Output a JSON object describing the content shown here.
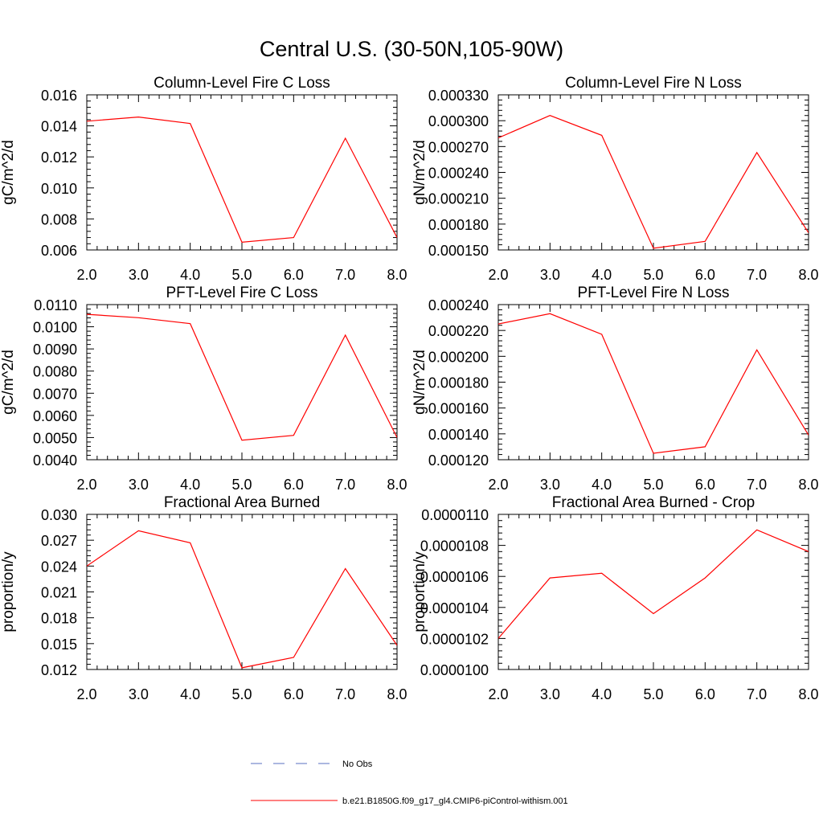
{
  "figure_title": "Central U.S. (30-50N,105-90W)",
  "legend": {
    "items": [
      {
        "label": "No Obs",
        "style": "dashed",
        "color": "#5a6fc0"
      },
      {
        "label": "b.e21.B1850G.f09_g17_gl4.CMIP6-piControl-withism.001",
        "style": "solid",
        "color": "#ff0000"
      }
    ]
  },
  "series_color": "#ff0000",
  "chart_data": [
    {
      "type": "line",
      "title": "Column-Level Fire C Loss",
      "ylabel": "gC/m^2/d",
      "xlabel": "",
      "x": [
        2,
        3,
        4,
        5,
        6,
        7,
        8
      ],
      "x_tick_labels": [
        "2.0",
        "3.0",
        "4.0",
        "5.0",
        "6.0",
        "7.0",
        "8.0"
      ],
      "xlim": [
        2,
        8
      ],
      "ylim": [
        0.006,
        0.016
      ],
      "y_tick_values": [
        0.006,
        0.008,
        0.01,
        0.012,
        0.014,
        0.016
      ],
      "y_tick_labels": [
        "0.006",
        "0.008",
        "0.010",
        "0.012",
        "0.014",
        "0.016"
      ],
      "series": [
        {
          "values": [
            0.0143,
            0.01457,
            0.01415,
            0.0065,
            0.0068,
            0.0132,
            0.0068
          ]
        }
      ]
    },
    {
      "type": "line",
      "title": "Column-Level Fire N Loss",
      "ylabel": "gN/m^2/d",
      "xlabel": "",
      "x": [
        2,
        3,
        4,
        5,
        6,
        7,
        8
      ],
      "x_tick_labels": [
        "2.0",
        "3.0",
        "4.0",
        "5.0",
        "6.0",
        "7.0",
        "8.0"
      ],
      "xlim": [
        2,
        8
      ],
      "ylim": [
        0.00015,
        0.00033
      ],
      "y_tick_values": [
        0.00015,
        0.00018,
        0.00021,
        0.00024,
        0.00027,
        0.0003,
        0.00033
      ],
      "y_tick_labels": [
        "0.000150",
        "0.000180",
        "0.000210",
        "0.000240",
        "0.000270",
        "0.000300",
        "0.000330"
      ],
      "series": [
        {
          "values": [
            0.00028,
            0.000306,
            0.000283,
            0.000152,
            0.00016,
            0.000263,
            0.00017
          ]
        }
      ]
    },
    {
      "type": "line",
      "title": "PFT-Level Fire C Loss",
      "ylabel": "gC/m^2/d",
      "xlabel": "",
      "x": [
        2,
        3,
        4,
        5,
        6,
        7,
        8
      ],
      "x_tick_labels": [
        "2.0",
        "3.0",
        "4.0",
        "5.0",
        "6.0",
        "7.0",
        "8.0"
      ],
      "xlim": [
        2,
        8
      ],
      "ylim": [
        0.004,
        0.011
      ],
      "y_tick_values": [
        0.004,
        0.005,
        0.006,
        0.007,
        0.008,
        0.009,
        0.01,
        0.011
      ],
      "y_tick_labels": [
        "0.0040",
        "0.0050",
        "0.0060",
        "0.0070",
        "0.0080",
        "0.0090",
        "0.0100",
        "0.0110"
      ],
      "series": [
        {
          "values": [
            0.01056,
            0.01041,
            0.01014,
            0.00488,
            0.0051,
            0.00962,
            0.005
          ]
        }
      ]
    },
    {
      "type": "line",
      "title": "PFT-Level Fire N Loss",
      "ylabel": "gN/m^2/d",
      "xlabel": "",
      "x": [
        2,
        3,
        4,
        5,
        6,
        7,
        8
      ],
      "x_tick_labels": [
        "2.0",
        "3.0",
        "4.0",
        "5.0",
        "6.0",
        "7.0",
        "8.0"
      ],
      "xlim": [
        2,
        8
      ],
      "ylim": [
        0.00012,
        0.00024
      ],
      "y_tick_values": [
        0.00012,
        0.00014,
        0.00016,
        0.00018,
        0.0002,
        0.00022,
        0.00024
      ],
      "y_tick_labels": [
        "0.000120",
        "0.000140",
        "0.000160",
        "0.000180",
        "0.000200",
        "0.000220",
        "0.000240"
      ],
      "series": [
        {
          "values": [
            0.000225,
            0.000233,
            0.000217,
            0.000125,
            0.00013,
            0.000205,
            0.000139
          ]
        }
      ]
    },
    {
      "type": "line",
      "title": "Fractional Area Burned",
      "ylabel": "proportion/y",
      "xlabel": "",
      "x": [
        2,
        3,
        4,
        5,
        6,
        7,
        8
      ],
      "x_tick_labels": [
        "2.0",
        "3.0",
        "4.0",
        "5.0",
        "6.0",
        "7.0",
        "8.0"
      ],
      "xlim": [
        2,
        8
      ],
      "ylim": [
        0.012,
        0.03
      ],
      "y_tick_values": [
        0.012,
        0.015,
        0.018,
        0.021,
        0.024,
        0.027,
        0.03
      ],
      "y_tick_labels": [
        "0.012",
        "0.015",
        "0.018",
        "0.021",
        "0.024",
        "0.027",
        "0.030"
      ],
      "series": [
        {
          "values": [
            0.024,
            0.0281,
            0.0267,
            0.0122,
            0.0134,
            0.0237,
            0.0148
          ]
        }
      ]
    },
    {
      "type": "line",
      "title": "Fractional Area Burned - Crop",
      "ylabel": "proportion/y",
      "xlabel": "",
      "x": [
        2,
        3,
        4,
        5,
        6,
        7,
        8
      ],
      "x_tick_labels": [
        "2.0",
        "3.0",
        "4.0",
        "5.0",
        "6.0",
        "7.0",
        "8.0"
      ],
      "xlim": [
        2,
        8
      ],
      "ylim": [
        1e-05,
        1.1e-05
      ],
      "y_tick_values": [
        1e-05,
        1.02e-05,
        1.04e-05,
        1.06e-05,
        1.08e-05,
        1.1e-05
      ],
      "y_tick_labels": [
        "0.0000100",
        "0.0000102",
        "0.0000104",
        "0.0000106",
        "0.0000108",
        "0.0000110"
      ],
      "series": [
        {
          "values": [
            1.02e-05,
            1.059e-05,
            1.062e-05,
            1.036e-05,
            1.059e-05,
            1.09e-05,
            1.076e-05
          ]
        }
      ]
    }
  ]
}
